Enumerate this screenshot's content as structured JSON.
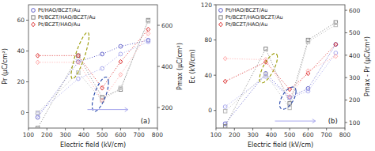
{
  "chart_data": [
    {
      "type": "line",
      "title": "(a)",
      "xlabel": "Electric field (kV/cm)",
      "ylabel": "Pr (μC/cm²)",
      "y2label": "Pmax (μC/cm²)",
      "xlim": [
        100,
        800
      ],
      "xticks": [
        100,
        200,
        300,
        400,
        500,
        600,
        700,
        800
      ],
      "ylim": [
        -10,
        70
      ],
      "yticks": [
        0,
        20,
        40,
        60
      ],
      "y2lim": [
        100,
        700
      ],
      "y2ticks": [
        200,
        400,
        600
      ],
      "grid": false,
      "legend": "upper left",
      "x": [
        150,
        370,
        500,
        600,
        750
      ],
      "series": [
        {
          "name": "Pt/HAO/BCZT/Au",
          "color": "#6666cc",
          "marker": "circle",
          "line_style": "dotted",
          "values": [
            -3,
            33,
            38,
            43,
            47
          ]
        },
        {
          "name": "Pt/BCZT/HAO/BCZT/Au",
          "color": "#888888",
          "marker": "square",
          "line_style": "dotted",
          "values": [
            -10,
            37,
            10,
            15,
            60
          ]
        },
        {
          "name": "Pt/BCZT/HAO/Au",
          "color": "#dd3333",
          "marker": "diamond",
          "line_style": "dotted",
          "values": [
            37,
            37,
            16,
            33,
            54
          ]
        },
        {
          "axis": "y2",
          "color": "#aaaaee",
          "marker": "circle",
          "line_style": "dotted",
          "values": [
            170,
            340,
            390,
            460,
            520
          ]
        },
        {
          "axis": "y2",
          "color": "#bbbbbb",
          "marker": "square",
          "line_style": "dotted",
          "values": [
            175,
            370,
            235,
            295,
            620
          ]
        },
        {
          "axis": "y2",
          "color": "#ffaaaa",
          "marker": "diamond",
          "line_style": "dotted",
          "values": [
            420,
            420,
            235,
            360,
            560
          ]
        }
      ],
      "ellipses": [
        {
          "x": 380,
          "y": 37,
          "width": 100,
          "height": 16,
          "angle": 15,
          "color": "#999900",
          "line_style": "dashed"
        },
        {
          "x": 490,
          "y": 12,
          "width": 90,
          "height": 16,
          "angle": 10,
          "color": "#2244aa",
          "line_style": "dashed"
        }
      ],
      "arrow": {
        "x1": 420,
        "x2": 640,
        "y": 2,
        "color": "#aaaaee"
      }
    },
    {
      "type": "line",
      "title": "(b)",
      "xlabel": "Electric field (kV/cm)",
      "ylabel": "Ec (kV/cm)",
      "y2label": "Pmax - Pr (μC/cm²)",
      "xlim": [
        100,
        800
      ],
      "xticks": [
        100,
        200,
        300,
        400,
        500,
        600,
        700,
        800
      ],
      "ylim": [
        -20,
        120
      ],
      "yticks": [
        0,
        40,
        80,
        120
      ],
      "y2lim": [
        75,
        625
      ],
      "y2ticks": [
        100,
        200,
        300,
        400,
        500,
        600
      ],
      "grid": false,
      "legend": "upper left",
      "x": [
        150,
        370,
        500,
        600,
        750
      ],
      "series": [
        {
          "name": "Pt/HAO/BCZT/Au",
          "color": "#6666cc",
          "marker": "circle",
          "line_style": "dotted",
          "values": [
            -15,
            42,
            15,
            25,
            75
          ]
        },
        {
          "name": "Pt/BCZT/HAO/BCZT/Au",
          "color": "#888888",
          "marker": "square",
          "line_style": "dotted",
          "values": [
            -18,
            70,
            8,
            80,
            100
          ]
        },
        {
          "name": "Pt/BCZT/HAO/Au",
          "color": "#dd3333",
          "marker": "diamond",
          "line_style": "dotted",
          "values": [
            33,
            55,
            24,
            42,
            75
          ]
        },
        {
          "axis": "y2",
          "color": "#aaaaee",
          "marker": "circle",
          "line_style": "dotted",
          "values": [
            170,
            305,
            210,
            240,
            410
          ]
        },
        {
          "axis": "y2",
          "color": "#bbbbbb",
          "marker": "square",
          "line_style": "dotted",
          "values": [
            150,
            315,
            165,
            460,
            535
          ]
        },
        {
          "axis": "y2",
          "color": "#ffaaaa",
          "marker": "diamond",
          "line_style": "dotted",
          "values": [
            385,
            380,
            215,
            330,
            395
          ]
        }
      ],
      "ellipses": [
        {
          "x": 385,
          "y": 48,
          "width": 100,
          "height": 22,
          "angle": 15,
          "color": "#999900",
          "line_style": "dashed"
        },
        {
          "x": 490,
          "y": 14,
          "width": 90,
          "height": 20,
          "angle": 10,
          "color": "#2244aa",
          "line_style": "dashed"
        }
      ],
      "arrow": {
        "x1": 420,
        "x2": 640,
        "y": -12,
        "color": "#aaaaee"
      }
    }
  ]
}
